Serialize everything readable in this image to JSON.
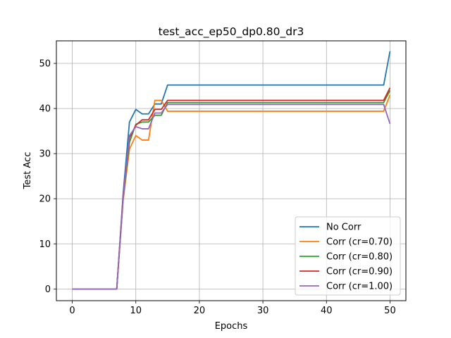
{
  "chart_data": {
    "type": "line",
    "title": "test_acc_ep50_dp0.80_dr3",
    "xlabel": "Epochs",
    "ylabel": "Test Acc",
    "xlim": [
      -2.5,
      52.5
    ],
    "ylim": [
      -2.6,
      55.0
    ],
    "xticks": [
      0,
      10,
      20,
      30,
      40,
      50
    ],
    "yticks": [
      0,
      10,
      20,
      30,
      40,
      50
    ],
    "grid": true,
    "legend_position": "lower right",
    "x": [
      0,
      1,
      2,
      3,
      4,
      5,
      6,
      7,
      8,
      9,
      10,
      11,
      12,
      13,
      14,
      15,
      16,
      17,
      18,
      19,
      20,
      21,
      22,
      23,
      24,
      25,
      26,
      27,
      28,
      29,
      30,
      31,
      32,
      33,
      34,
      35,
      36,
      37,
      38,
      39,
      40,
      41,
      42,
      43,
      44,
      45,
      46,
      47,
      48,
      49,
      50
    ],
    "series": [
      {
        "name": "No Corr",
        "color": "#1f77b4",
        "values": [
          0,
          0,
          0,
          0,
          0,
          0,
          0,
          0,
          21.0,
          37.0,
          39.8,
          38.8,
          38.8,
          41.0,
          41.0,
          45.2,
          45.2,
          45.2,
          45.2,
          45.2,
          45.2,
          45.2,
          45.2,
          45.2,
          45.2,
          45.2,
          45.2,
          45.2,
          45.2,
          45.2,
          45.2,
          45.2,
          45.2,
          45.2,
          45.2,
          45.2,
          45.2,
          45.2,
          45.2,
          45.2,
          45.2,
          45.2,
          45.2,
          45.2,
          45.2,
          45.2,
          45.2,
          45.2,
          45.2,
          45.2,
          52.7
        ]
      },
      {
        "name": "Corr (cr=0.70)",
        "color": "#ff7f0e",
        "values": [
          0,
          0,
          0,
          0,
          0,
          0,
          0,
          0,
          19.5,
          31.0,
          34.0,
          33.0,
          33.0,
          41.8,
          41.8,
          39.4,
          39.4,
          39.4,
          39.4,
          39.4,
          39.4,
          39.4,
          39.4,
          39.4,
          39.4,
          39.4,
          39.4,
          39.4,
          39.4,
          39.4,
          39.4,
          39.4,
          39.4,
          39.4,
          39.4,
          39.4,
          39.4,
          39.4,
          39.4,
          39.4,
          39.4,
          39.4,
          39.4,
          39.4,
          39.4,
          39.4,
          39.4,
          39.4,
          39.4,
          39.4,
          43.0
        ]
      },
      {
        "name": "Corr (cr=0.80)",
        "color": "#2ca02c",
        "values": [
          0,
          0,
          0,
          0,
          0,
          0,
          0,
          0,
          20.0,
          32.5,
          36.5,
          37.0,
          37.0,
          38.5,
          38.5,
          41.3,
          41.3,
          41.3,
          41.3,
          41.3,
          41.3,
          41.3,
          41.3,
          41.3,
          41.3,
          41.3,
          41.3,
          41.3,
          41.3,
          41.3,
          41.3,
          41.3,
          41.3,
          41.3,
          41.3,
          41.3,
          41.3,
          41.3,
          41.3,
          41.3,
          41.3,
          41.3,
          41.3,
          41.3,
          41.3,
          41.3,
          41.3,
          41.3,
          41.3,
          41.3,
          44.0
        ]
      },
      {
        "name": "Corr (cr=0.90)",
        "color": "#d62728",
        "values": [
          0,
          0,
          0,
          0,
          0,
          0,
          0,
          0,
          20.5,
          33.5,
          36.3,
          37.5,
          37.5,
          39.8,
          39.8,
          41.8,
          41.8,
          41.8,
          41.8,
          41.8,
          41.8,
          41.8,
          41.8,
          41.8,
          41.8,
          41.8,
          41.8,
          41.8,
          41.8,
          41.8,
          41.8,
          41.8,
          41.8,
          41.8,
          41.8,
          41.8,
          41.8,
          41.8,
          41.8,
          41.8,
          41.8,
          41.8,
          41.8,
          41.8,
          41.8,
          41.8,
          41.8,
          41.8,
          41.8,
          41.8,
          44.6
        ]
      },
      {
        "name": "Corr (cr=1.00)",
        "color": "#9467bd",
        "values": [
          0,
          0,
          0,
          0,
          0,
          0,
          0,
          0,
          20.0,
          34.0,
          36.0,
          35.5,
          35.5,
          39.0,
          39.0,
          40.9,
          40.9,
          40.9,
          40.9,
          40.9,
          40.9,
          40.9,
          40.9,
          40.9,
          40.9,
          40.9,
          40.9,
          40.9,
          40.9,
          40.9,
          40.9,
          40.9,
          40.9,
          40.9,
          40.9,
          40.9,
          40.9,
          40.9,
          40.9,
          40.9,
          40.9,
          40.9,
          40.9,
          40.9,
          40.9,
          40.9,
          40.9,
          40.9,
          40.9,
          40.9,
          36.6
        ]
      }
    ]
  }
}
